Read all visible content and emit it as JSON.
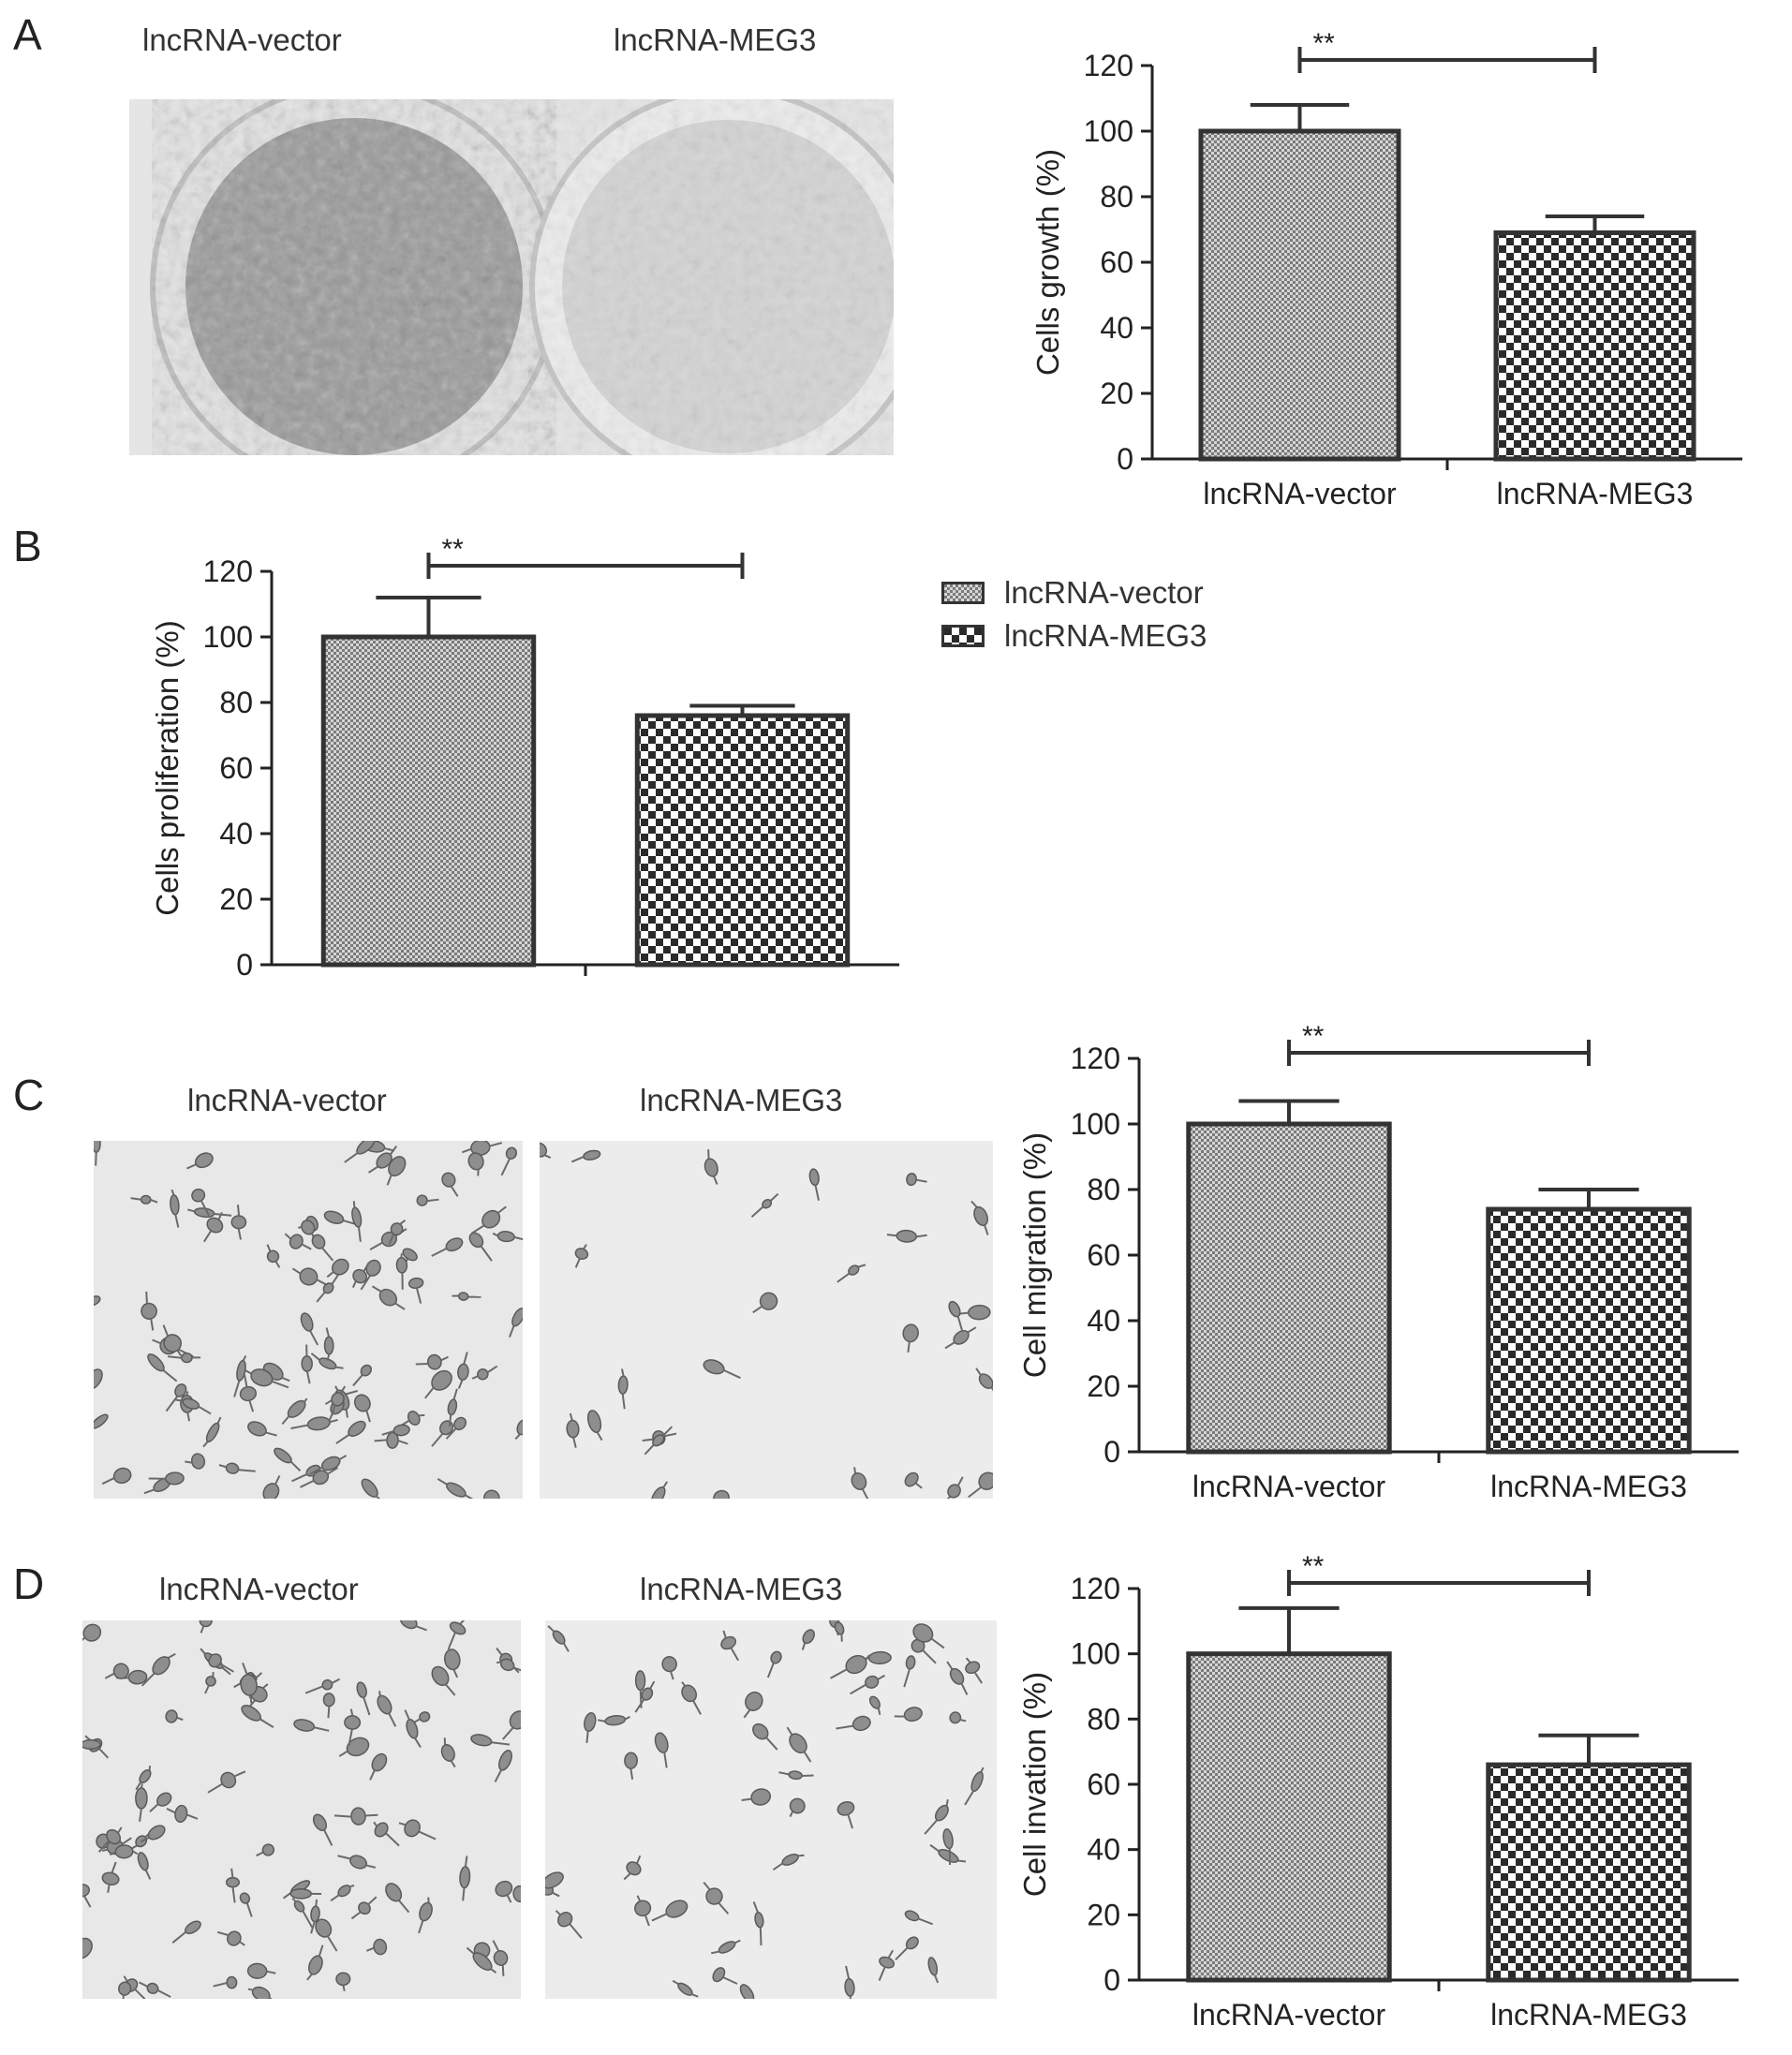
{
  "panels": {
    "A": {
      "letter": "A",
      "photo_labels": [
        "lncRNA-vector",
        "lncRNA-MEG3"
      ],
      "photo_description": "colony formation plates"
    },
    "B": {
      "letter": "B"
    },
    "C": {
      "letter": "C",
      "photo_labels": [
        "lncRNA-vector",
        "lncRNA-MEG3"
      ]
    },
    "D": {
      "letter": "D",
      "photo_labels": [
        "lncRNA-vector",
        "lncRNA-MEG3"
      ]
    }
  },
  "legend": {
    "entries": [
      {
        "label": "lncRNA-vector",
        "pattern": "fine-check"
      },
      {
        "label": "lncRNA-MEG3",
        "pattern": "coarse-check"
      }
    ]
  },
  "significance_label": "**",
  "colors": {
    "bar_outline": "#333333",
    "axis": "#222222",
    "photo_bg": "#e9e9e9"
  },
  "chart_data": [
    {
      "id": "A",
      "type": "bar",
      "categories": [
        "lncRNA-vector",
        "lncRNA-MEG3"
      ],
      "values": [
        100,
        69
      ],
      "errors": [
        8,
        5
      ],
      "ylabel": "Cells growth (%)",
      "xlabel": "",
      "ylim": [
        0,
        120
      ],
      "yticks": [
        0,
        20,
        40,
        60,
        80,
        100,
        120
      ],
      "show_category_labels": true,
      "significance": "**"
    },
    {
      "id": "B",
      "type": "bar",
      "categories": [
        "lncRNA-vector",
        "lncRNA-MEG3"
      ],
      "values": [
        100,
        76
      ],
      "errors": [
        12,
        3
      ],
      "ylabel": "Cells proliferation (%)",
      "xlabel": "",
      "ylim": [
        0,
        120
      ],
      "yticks": [
        0,
        20,
        40,
        60,
        80,
        100,
        120
      ],
      "show_category_labels": false,
      "significance": "**"
    },
    {
      "id": "C",
      "type": "bar",
      "categories": [
        "lncRNA-vector",
        "lncRNA-MEG3"
      ],
      "values": [
        100,
        74
      ],
      "errors": [
        7,
        6
      ],
      "ylabel": "Cell migration (%)",
      "xlabel": "",
      "ylim": [
        0,
        120
      ],
      "yticks": [
        0,
        20,
        40,
        60,
        80,
        100,
        120
      ],
      "show_category_labels": true,
      "significance": "**"
    },
    {
      "id": "D",
      "type": "bar",
      "categories": [
        "lncRNA-vector",
        "lncRNA-MEG3"
      ],
      "values": [
        100,
        66
      ],
      "errors": [
        14,
        9
      ],
      "ylabel": "Cell invation (%)",
      "xlabel": "",
      "ylim": [
        0,
        120
      ],
      "yticks": [
        0,
        20,
        40,
        60,
        80,
        100,
        120
      ],
      "show_category_labels": true,
      "significance": "**"
    }
  ]
}
